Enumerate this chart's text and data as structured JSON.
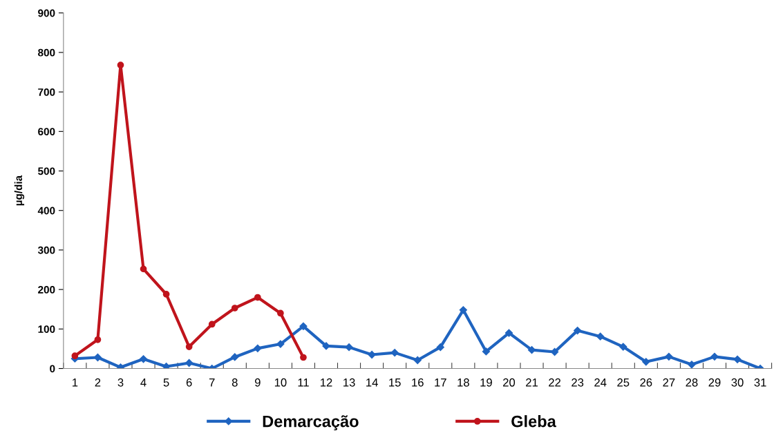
{
  "chart_data": {
    "type": "line",
    "ylabel": "µg/dia",
    "categories": [
      "1",
      "2",
      "3",
      "4",
      "5",
      "6",
      "7",
      "8",
      "9",
      "10",
      "11",
      "12",
      "13",
      "14",
      "15",
      "16",
      "17",
      "18",
      "19",
      "20",
      "21",
      "22",
      "23",
      "24",
      "25",
      "26",
      "27",
      "28",
      "29",
      "30",
      "31"
    ],
    "ylim": [
      0,
      900
    ],
    "yticks": [
      0,
      100,
      200,
      300,
      400,
      500,
      600,
      700,
      800,
      900
    ],
    "grid": false,
    "legend": "bottom",
    "series": [
      {
        "name": "Demarcação",
        "color": "#1f64c0",
        "marker": "diamond",
        "values": [
          25,
          28,
          3,
          24,
          5,
          14,
          0,
          29,
          51,
          62,
          107,
          57,
          54,
          35,
          40,
          21,
          54,
          148,
          43,
          90,
          47,
          42,
          96,
          81,
          55,
          17,
          30,
          10,
          30,
          23,
          0
        ]
      },
      {
        "name": "Gleba",
        "color": "#c0141c",
        "marker": "circle",
        "values": [
          32,
          73,
          768,
          252,
          188,
          55,
          112,
          153,
          180,
          140,
          28,
          null,
          null,
          null,
          null,
          null,
          null,
          null,
          null,
          null,
          null,
          null,
          null,
          null,
          null,
          null,
          null,
          null,
          null,
          null,
          null
        ]
      }
    ]
  }
}
